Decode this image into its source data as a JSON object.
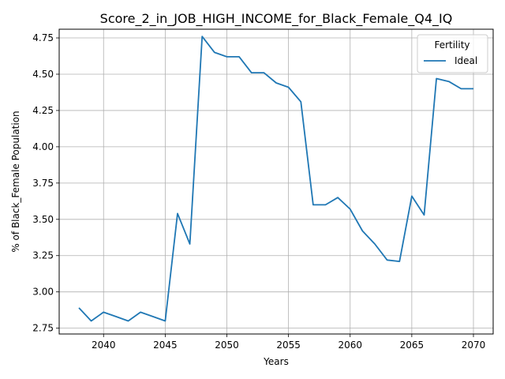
{
  "chart_data": {
    "type": "line",
    "title": "Score_2_in_JOB_HIGH_INCOME_for_Black_Female_Q4_IQ",
    "xlabel": "Years",
    "ylabel": "% of Black_Female Population",
    "xlim": [
      2036.4,
      2071.6
    ],
    "ylim": [
      2.71,
      4.81
    ],
    "xticks": [
      2040,
      2045,
      2050,
      2055,
      2060,
      2065,
      2070
    ],
    "yticks": [
      2.75,
      3.0,
      3.25,
      3.5,
      3.75,
      4.0,
      4.25,
      4.5,
      4.75
    ],
    "grid": true,
    "legend": {
      "title": "Fertility",
      "position": "top-right"
    },
    "x": [
      2038,
      2039,
      2040,
      2041,
      2042,
      2043,
      2044,
      2045,
      2046,
      2047,
      2048,
      2049,
      2050,
      2051,
      2052,
      2053,
      2054,
      2055,
      2056,
      2057,
      2058,
      2059,
      2060,
      2061,
      2062,
      2063,
      2064,
      2065,
      2066,
      2067,
      2068,
      2069,
      2070
    ],
    "series": [
      {
        "name": "Ideal",
        "color": "#1f77b4",
        "values": [
          2.89,
          2.8,
          2.86,
          2.83,
          2.8,
          2.86,
          2.83,
          2.8,
          3.54,
          3.33,
          4.76,
          4.65,
          4.62,
          4.62,
          4.51,
          4.51,
          4.44,
          4.41,
          4.31,
          3.6,
          3.6,
          3.65,
          3.57,
          3.42,
          3.33,
          3.22,
          3.21,
          3.66,
          3.53,
          4.47,
          4.45,
          4.4,
          4.4
        ]
      }
    ]
  }
}
